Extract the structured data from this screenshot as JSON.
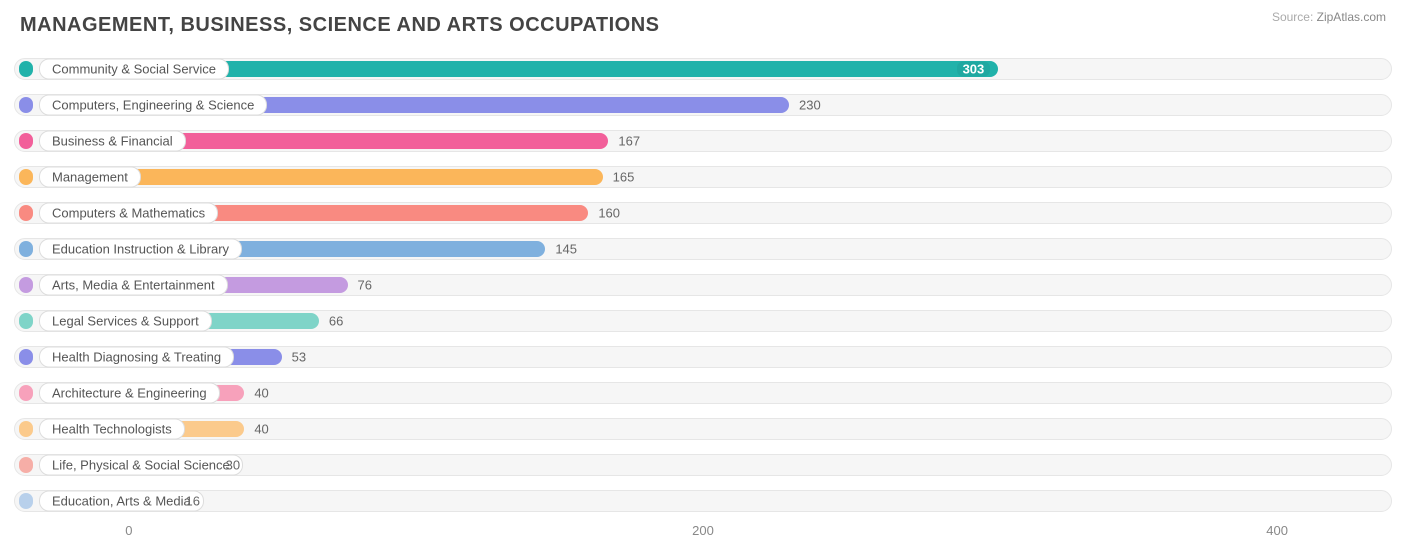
{
  "title": "MANAGEMENT, BUSINESS, SCIENCE AND ARTS OCCUPATIONS",
  "source_label": "Source:",
  "source_site": "ZipAtlas.com",
  "chart": {
    "type": "bar-horizontal",
    "xmin": -40,
    "xmax": 440,
    "xticks": [
      0,
      200,
      400
    ],
    "track_bg": "#f6f6f6",
    "track_border": "#e6e6e6",
    "label_pill_bg": "#ffffff",
    "label_pill_border": "#dddddd",
    "title_fontsize": 20,
    "label_fontsize": 13,
    "rows": [
      {
        "label": "Community & Social Service",
        "value": 303,
        "color": "#21b2aa",
        "value_inside": true
      },
      {
        "label": "Computers, Engineering & Science",
        "value": 230,
        "color": "#8a8ee8",
        "value_inside": false
      },
      {
        "label": "Business & Financial",
        "value": 167,
        "color": "#f25f9a",
        "value_inside": false
      },
      {
        "label": "Management",
        "value": 165,
        "color": "#fbb65a",
        "value_inside": false
      },
      {
        "label": "Computers & Mathematics",
        "value": 160,
        "color": "#f98a81",
        "value_inside": false
      },
      {
        "label": "Education Instruction & Library",
        "value": 145,
        "color": "#7fb0de",
        "value_inside": false
      },
      {
        "label": "Arts, Media & Entertainment",
        "value": 76,
        "color": "#c49be0",
        "value_inside": false
      },
      {
        "label": "Legal Services & Support",
        "value": 66,
        "color": "#7fd4c8",
        "value_inside": false
      },
      {
        "label": "Health Diagnosing & Treating",
        "value": 53,
        "color": "#8a8ee8",
        "value_inside": false
      },
      {
        "label": "Architecture & Engineering",
        "value": 40,
        "color": "#f7a1bb",
        "value_inside": false
      },
      {
        "label": "Health Technologists",
        "value": 40,
        "color": "#fbca8c",
        "value_inside": false
      },
      {
        "label": "Life, Physical & Social Science",
        "value": 30,
        "color": "#f6aea7",
        "value_inside": false
      },
      {
        "label": "Education, Arts & Media",
        "value": 16,
        "color": "#b8d0eb",
        "value_inside": false
      }
    ]
  }
}
